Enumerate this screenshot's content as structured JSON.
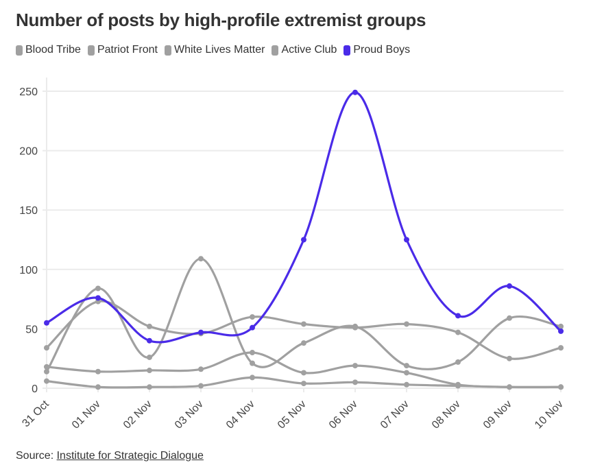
{
  "chart_data": {
    "type": "line",
    "title": "Number of posts by high-profile extremist groups",
    "xlabel": "",
    "ylabel": "",
    "x": [
      "31 Oct",
      "01 Nov",
      "02 Nov",
      "03 Nov",
      "04 Nov",
      "05 Nov",
      "06 Nov",
      "07 Nov",
      "08 Nov",
      "09 Nov",
      "10 Nov"
    ],
    "ylim": [
      0,
      250
    ],
    "yticks": [
      0,
      50,
      100,
      150,
      200,
      250
    ],
    "grid": true,
    "legend_position": "top-left",
    "series": [
      {
        "name": "Blood Tribe",
        "color": "#a0a0a0",
        "values": [
          34,
          73,
          52,
          46,
          60,
          54,
          51,
          54,
          47,
          25,
          34
        ]
      },
      {
        "name": "Patriot Front",
        "color": "#a0a0a0",
        "values": [
          14,
          84,
          26,
          109,
          21,
          38,
          52,
          19,
          22,
          59,
          52
        ]
      },
      {
        "name": "White Lives Matter",
        "color": "#a0a0a0",
        "values": [
          18,
          14,
          15,
          16,
          30,
          13,
          19,
          13,
          3,
          1,
          1
        ]
      },
      {
        "name": "Active Club",
        "color": "#a0a0a0",
        "values": [
          6,
          1,
          1,
          2,
          9,
          4,
          5,
          3,
          2,
          1,
          1
        ]
      },
      {
        "name": "Proud Boys",
        "color": "#4a2be8",
        "values": [
          55,
          76,
          40,
          47,
          51,
          125,
          249,
          125,
          61,
          86,
          48
        ]
      }
    ]
  },
  "source": {
    "prefix": "Source: ",
    "link_text": "Institute for Strategic Dialogue"
  }
}
